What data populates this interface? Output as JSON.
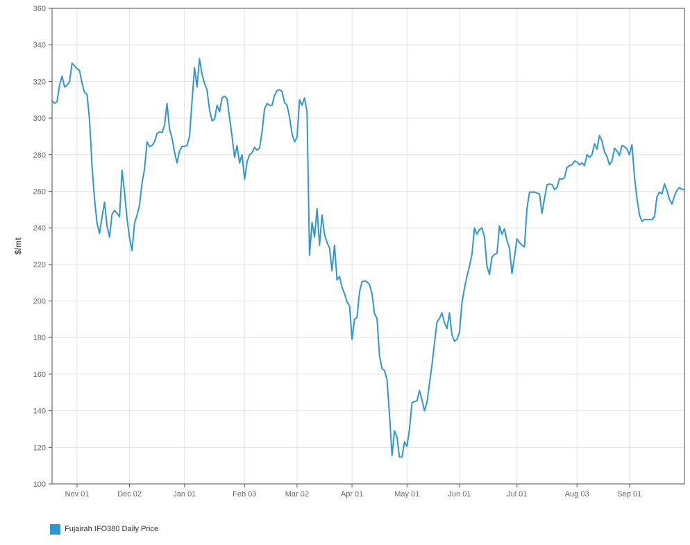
{
  "chart_data": {
    "type": "line",
    "title": "",
    "xlabel": "",
    "ylabel": "$/mt",
    "grid": true,
    "legend_position": "bottom-left",
    "y_axis": {
      "min": 100,
      "max": 360,
      "step": 20
    },
    "y_ticks": [
      360,
      340,
      320,
      300,
      280,
      260,
      240,
      220,
      200,
      180,
      160,
      140,
      120,
      100
    ],
    "x_ticks": [
      {
        "label": "Nov 01",
        "day": 10
      },
      {
        "label": "Dec 02",
        "day": 31
      },
      {
        "label": "Jan 01",
        "day": 53
      },
      {
        "label": "Feb 03",
        "day": 77
      },
      {
        "label": "Mar 02",
        "day": 98
      },
      {
        "label": "Apr 01",
        "day": 120
      },
      {
        "label": "May 01",
        "day": 142
      },
      {
        "label": "Jun 01",
        "day": 163
      },
      {
        "label": "Jul 01",
        "day": 186
      },
      {
        "label": "Aug 03",
        "day": 210
      },
      {
        "label": "Sep 01",
        "day": 231
      }
    ],
    "series": [
      {
        "name": "Fujairah IFO380 Daily Price",
        "color": "#2f96d2",
        "unit": "$/mt",
        "x_unit": "business-day index from chart start",
        "values": [
          309.5,
          308,
          309,
          318,
          323,
          317,
          318,
          320,
          330,
          328.5,
          327,
          326,
          319,
          314,
          313,
          299,
          273.5,
          255.5,
          242.5,
          237,
          246,
          254,
          241,
          235,
          247.5,
          249.5,
          248,
          246,
          271.5,
          259.5,
          245,
          234.5,
          227.5,
          242.5,
          247,
          252.5,
          264.5,
          272,
          287,
          284.5,
          285,
          287,
          291.5,
          292.5,
          292,
          296,
          308,
          294,
          289,
          281.5,
          275.5,
          282,
          284.5,
          284.5,
          285,
          290,
          309,
          327.5,
          317,
          332.5,
          324,
          319,
          315.5,
          304.5,
          298.5,
          299.5,
          307,
          303.5,
          311,
          312,
          310.5,
          300,
          290,
          278.5,
          285,
          275.5,
          280,
          266.5,
          276,
          280,
          281,
          284,
          282.5,
          283.5,
          292.5,
          305,
          308,
          307,
          307,
          312.5,
          315,
          315.5,
          314.5,
          308.5,
          307,
          300.5,
          291.5,
          287,
          289.5,
          310,
          307,
          311,
          303.5,
          225,
          243,
          235,
          250.5,
          230.5,
          247,
          236.5,
          232,
          229,
          216.5,
          230.5,
          211.5,
          213.5,
          207.5,
          204,
          199.5,
          197.5,
          179,
          190,
          191,
          205,
          210.5,
          211,
          210.5,
          209,
          204,
          193,
          190.5,
          170,
          163,
          162,
          157,
          138,
          115.5,
          129,
          125.5,
          114.7,
          114.7,
          123,
          120.5,
          130,
          144.5,
          145,
          145.5,
          151,
          146,
          140,
          144.5,
          155,
          165,
          177,
          188.5,
          190.5,
          193.5,
          188,
          185,
          193.5,
          181.5,
          178,
          179,
          183,
          199,
          207,
          213.5,
          219,
          225.5,
          240,
          236.5,
          239,
          240,
          235,
          219,
          214.5,
          224,
          225.5,
          226,
          241,
          236.5,
          239.5,
          233,
          229,
          215,
          224,
          234,
          232,
          230.5,
          229.5,
          251,
          259.5,
          259.5,
          259.5,
          259,
          258.5,
          248,
          256,
          263.5,
          264,
          263.5,
          261,
          262,
          267,
          266.5,
          267.5,
          273,
          274,
          274.5,
          276.5,
          276,
          274.5,
          275.5,
          274,
          280,
          278.5,
          280,
          286,
          283,
          290.5,
          287.5,
          281.5,
          279,
          274.5,
          276.5,
          283.5,
          282,
          279.5,
          285,
          284.5,
          283,
          280,
          285.5,
          268,
          256,
          247,
          243.5,
          244.5,
          244.5,
          244.5,
          244.5,
          246,
          257,
          259.5,
          258.5,
          264,
          260.5,
          255.5,
          253,
          257.5,
          260.5,
          262,
          261,
          261
        ]
      }
    ]
  },
  "legend": {
    "label": "Fujairah IFO380 Daily Price",
    "swatch_color": "#2f96d2"
  },
  "style_colors": {
    "line": "#2f96d2",
    "grid": "#e3e3e3",
    "frame": "#4d4d4d",
    "tick_label": "#666666",
    "axis_title": "#555555",
    "legend_text": "#333333",
    "background": "#ffffff"
  }
}
